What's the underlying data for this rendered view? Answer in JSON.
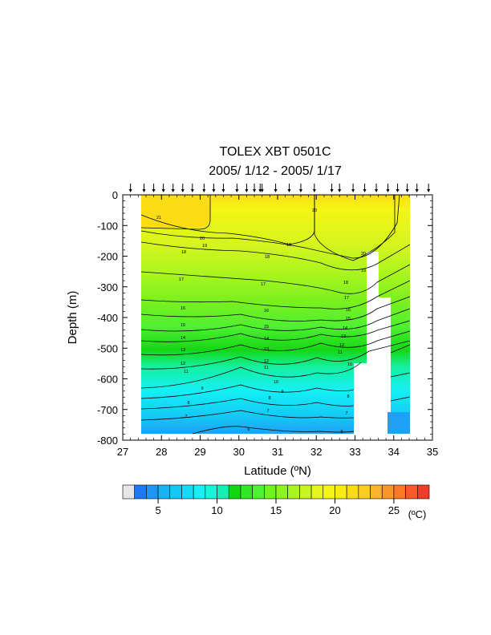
{
  "chart_data": {
    "type": "heatmap",
    "title": "TOLEX XBT 0501C",
    "subtitle": "2005/ 1/12 - 2005/ 1/17",
    "xlabel": "Latitude (ºN)",
    "ylabel": "Depth (m)",
    "xlim": [
      27,
      35
    ],
    "ylim": [
      -800,
      0
    ],
    "xticks": [
      "27",
      "28",
      "29",
      "30",
      "31",
      "32",
      "33",
      "34",
      "35"
    ],
    "yticks": [
      "0",
      "-100",
      "-200",
      "-300",
      "-400",
      "-500",
      "-600",
      "-700",
      "-800"
    ],
    "colorbar": {
      "ticks": [
        "5",
        "10",
        "15",
        "20",
        "25"
      ],
      "unit": "(ºC)",
      "levels": [
        3,
        28
      ],
      "colors": [
        "#1e78f0",
        "#1e96f5",
        "#14b4f5",
        "#14c8f5",
        "#14dcf5",
        "#14f0f5",
        "#14f5dc",
        "#14f0b4",
        "#14d714",
        "#32e628",
        "#50f032",
        "#6ef51e",
        "#8cf51e",
        "#aaf51e",
        "#c8f51e",
        "#e6f51e",
        "#f5f514",
        "#faeb14",
        "#fadc14",
        "#facd1e",
        "#fab428",
        "#fa9628",
        "#fa7828",
        "#fa5a28",
        "#f03c28"
      ]
    },
    "xbt_stations_lat": [
      27.2,
      27.55,
      27.8,
      28.05,
      28.3,
      28.55,
      28.8,
      29.1,
      29.35,
      29.6,
      29.95,
      30.2,
      30.4,
      30.55,
      30.6,
      30.95,
      31.3,
      31.6,
      31.95,
      32.4,
      32.6,
      32.95,
      33.25,
      33.55,
      33.85,
      34.1,
      34.35,
      34.6,
      34.9
    ]
  },
  "contour_labels": [
    "21",
    "20",
    "19",
    "18",
    "17",
    "16",
    "15",
    "14",
    "13",
    "12",
    "11",
    "10",
    "9",
    "8",
    "7",
    "6"
  ]
}
